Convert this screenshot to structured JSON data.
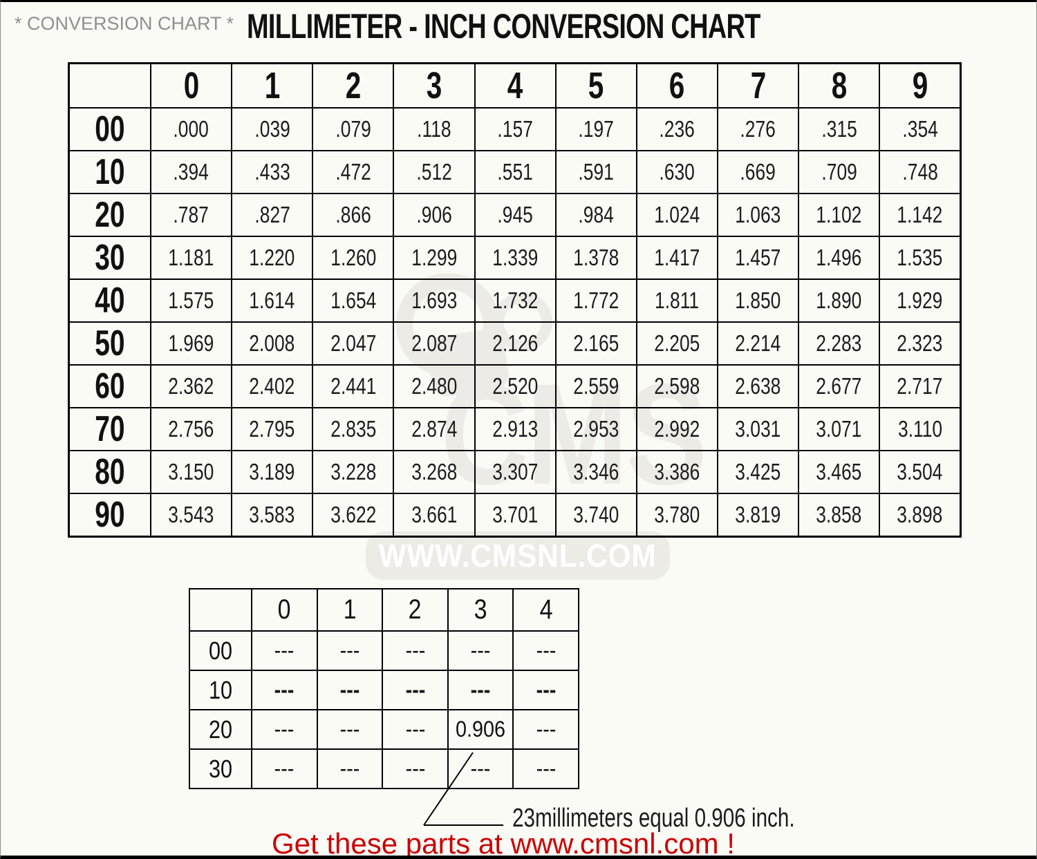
{
  "header": {
    "site_label": "* CONVERSION CHART *",
    "title": "MILLIMETER - INCH CONVERSION CHART"
  },
  "watermark": {
    "logo_text": "CMS",
    "url_text": "WWW.CMSNL.COM"
  },
  "colors": {
    "footer_red": "#cc0000",
    "watermark_gray": "#ecebe6",
    "border_black": "#000000"
  },
  "main_table": {
    "col_headers": [
      "0",
      "1",
      "2",
      "3",
      "4",
      "5",
      "6",
      "7",
      "8",
      "9"
    ],
    "rows": [
      {
        "label": "00",
        "values": [
          ".000",
          ".039",
          ".079",
          ".118",
          ".157",
          ".197",
          ".236",
          ".276",
          ".315",
          ".354"
        ]
      },
      {
        "label": "10",
        "values": [
          ".394",
          ".433",
          ".472",
          ".512",
          ".551",
          ".591",
          ".630",
          ".669",
          ".709",
          ".748"
        ]
      },
      {
        "label": "20",
        "values": [
          ".787",
          ".827",
          ".866",
          ".906",
          ".945",
          ".984",
          "1.024",
          "1.063",
          "1.102",
          "1.142"
        ]
      },
      {
        "label": "30",
        "values": [
          "1.181",
          "1.220",
          "1.260",
          "1.299",
          "1.339",
          "1.378",
          "1.417",
          "1.457",
          "1.496",
          "1.535"
        ]
      },
      {
        "label": "40",
        "values": [
          "1.575",
          "1.614",
          "1.654",
          "1.693",
          "1.732",
          "1.772",
          "1.811",
          "1.850",
          "1.890",
          "1.929"
        ]
      },
      {
        "label": "50",
        "values": [
          "1.969",
          "2.008",
          "2.047",
          "2.087",
          "2.126",
          "2.165",
          "2.205",
          "2.214",
          "2.283",
          "2.323"
        ]
      },
      {
        "label": "60",
        "values": [
          "2.362",
          "2.402",
          "2.441",
          "2.480",
          "2.520",
          "2.559",
          "2.598",
          "2.638",
          "2.677",
          "2.717"
        ]
      },
      {
        "label": "70",
        "values": [
          "2.756",
          "2.795",
          "2.835",
          "2.874",
          "2.913",
          "2.953",
          "2.992",
          "3.031",
          "3.071",
          "3.110"
        ]
      },
      {
        "label": "80",
        "values": [
          "3.150",
          "3.189",
          "3.228",
          "3.268",
          "3.307",
          "3.346",
          "3.386",
          "3.425",
          "3.465",
          "3.504"
        ]
      },
      {
        "label": "90",
        "values": [
          "3.543",
          "3.583",
          "3.622",
          "3.661",
          "3.701",
          "3.740",
          "3.780",
          "3.819",
          "3.858",
          "3.898"
        ]
      }
    ]
  },
  "example_table": {
    "col_headers": [
      "0",
      "1",
      "2",
      "3",
      "4"
    ],
    "rows": [
      {
        "label": "00",
        "bold": false,
        "values": [
          "---",
          "---",
          "---",
          "---",
          "---"
        ]
      },
      {
        "label": "10",
        "bold": true,
        "values": [
          "---",
          "---",
          "---",
          "---",
          "---"
        ]
      },
      {
        "label": "20",
        "bold": false,
        "values": [
          "---",
          "---",
          "---",
          "0.906",
          "---"
        ]
      },
      {
        "label": "30",
        "bold": false,
        "values": [
          "---",
          "---",
          "---",
          "---",
          "---"
        ]
      }
    ],
    "highlight_cell": {
      "row": "20",
      "col": "3",
      "value": "0.906"
    }
  },
  "annotation": {
    "text": "23millimeters equal 0.906 inch."
  },
  "footer": {
    "text": "Get these parts at www.cmsnl.com !"
  }
}
